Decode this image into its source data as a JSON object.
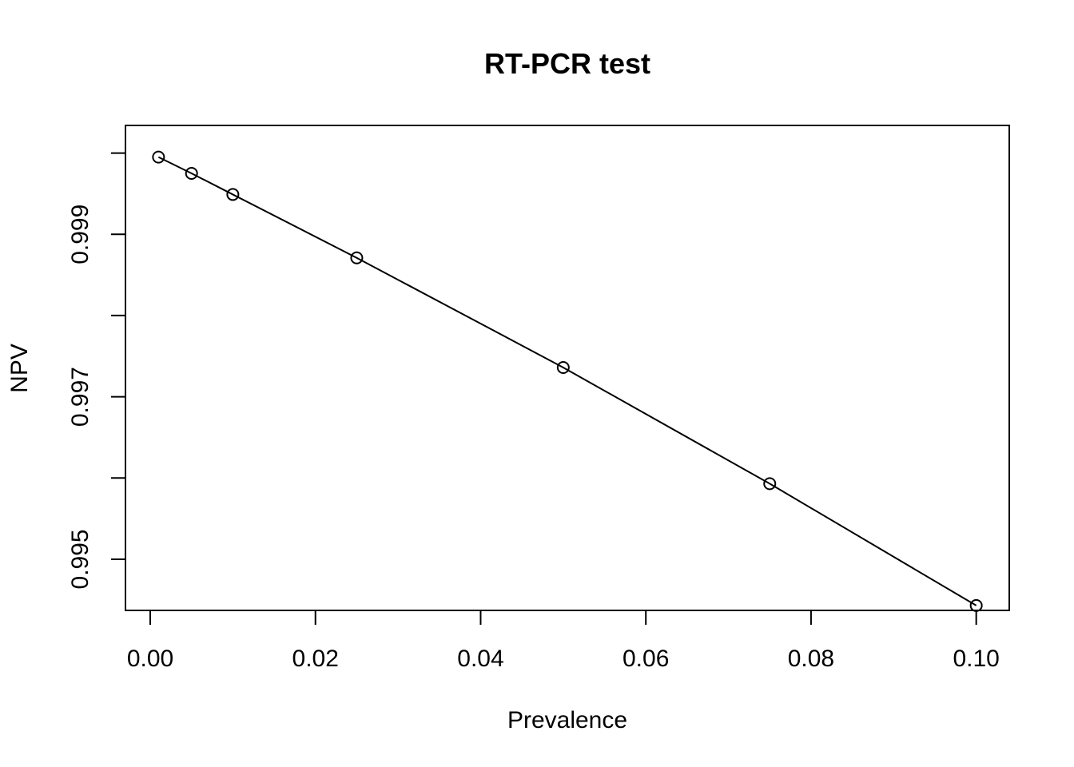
{
  "chart_data": {
    "type": "line",
    "title": "RT-PCR test",
    "xlabel": "Prevalence",
    "ylabel": "NPV",
    "x": [
      0.001,
      0.005,
      0.01,
      0.025,
      0.05,
      0.075,
      0.1
    ],
    "series": [
      {
        "values": [
          0.99995,
          0.99975,
          0.99949,
          0.99871,
          0.99736,
          0.99593,
          0.99443
        ]
      }
    ],
    "xlim": [
      -0.003,
      0.104
    ],
    "ylim": [
      0.99437,
      1.00034
    ],
    "x_ticks": [
      0,
      0.02,
      0.04,
      0.06,
      0.08,
      0.1
    ],
    "x_tick_labels": [
      "0.00",
      "0.02",
      "0.04",
      "0.06",
      "0.08",
      "0.10"
    ],
    "y_ticks": [
      0.995,
      0.996,
      0.997,
      0.998,
      0.999,
      1.0
    ],
    "y_tick_labels": [
      "0.995",
      "",
      "0.997",
      "",
      "0.999",
      ""
    ],
    "markers": "open-circle",
    "grid": false,
    "legend": "none"
  }
}
